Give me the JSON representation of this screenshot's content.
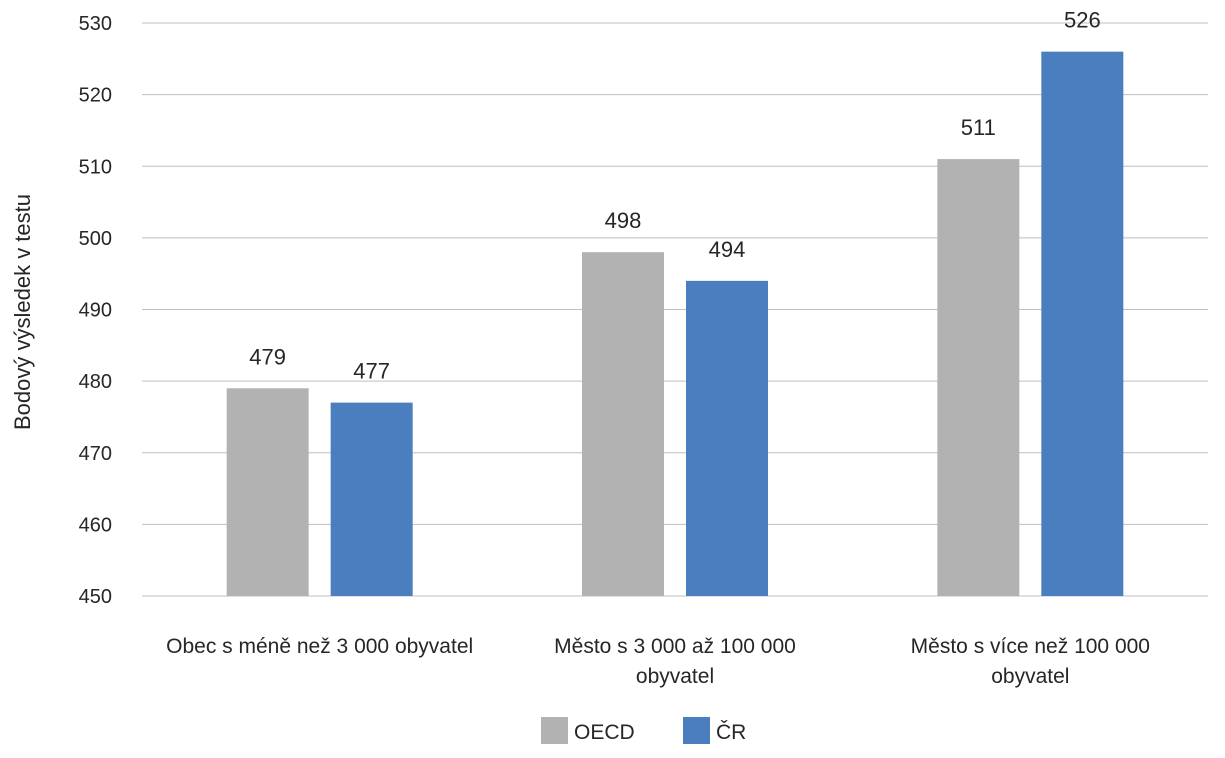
{
  "chart_data": {
    "type": "bar",
    "title": "",
    "xlabel": "",
    "ylabel": "Bodový výsledek v testu",
    "ylim": [
      450,
      530
    ],
    "yticks": [
      450,
      460,
      470,
      480,
      490,
      500,
      510,
      520,
      530
    ],
    "grid": true,
    "legend_position": "bottom",
    "categories": [
      [
        "Obec s méně než 3 000 obyvatel"
      ],
      [
        "Město s 3 000 až 100 000",
        "obyvatel"
      ],
      [
        "Město s více než 100 000",
        "obyvatel"
      ]
    ],
    "series": [
      {
        "name": "OECD",
        "color": "#b2b2b2",
        "values": [
          479,
          498,
          511
        ]
      },
      {
        "name": "ČR",
        "color": "#4a7ebf",
        "values": [
          477,
          494,
          526
        ]
      }
    ]
  }
}
